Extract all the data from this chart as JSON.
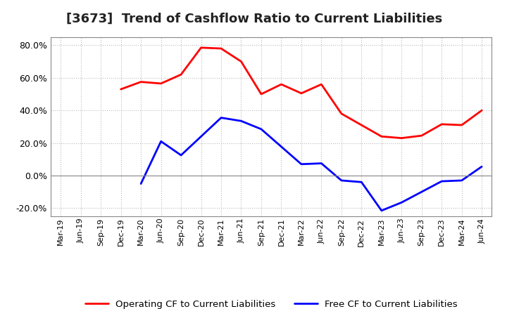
{
  "title": "[3673]  Trend of Cashflow Ratio to Current Liabilities",
  "x_labels": [
    "Mar-19",
    "Jun-19",
    "Sep-19",
    "Dec-19",
    "Mar-20",
    "Jun-20",
    "Sep-20",
    "Dec-20",
    "Mar-21",
    "Jun-21",
    "Sep-21",
    "Dec-21",
    "Mar-22",
    "Jun-22",
    "Sep-22",
    "Dec-22",
    "Mar-23",
    "Jun-23",
    "Sep-23",
    "Dec-23",
    "Mar-24",
    "Jun-24"
  ],
  "operating_cf": [
    null,
    null,
    null,
    53.0,
    57.5,
    56.5,
    62.0,
    78.5,
    78.0,
    70.0,
    50.0,
    56.0,
    50.5,
    56.0,
    38.0,
    null,
    24.0,
    23.0,
    24.5,
    31.5,
    31.0,
    40.0
  ],
  "free_cf": [
    null,
    null,
    null,
    null,
    -5.0,
    21.0,
    12.5,
    null,
    35.5,
    33.5,
    28.5,
    null,
    7.0,
    7.5,
    -3.0,
    -4.0,
    -21.5,
    -16.5,
    null,
    -3.5,
    -3.0,
    5.5
  ],
  "operating_cf_color": "#ff0000",
  "free_cf_color": "#0000ff",
  "ylim": [
    -25.0,
    85.0
  ],
  "yticks": [
    -20.0,
    0.0,
    20.0,
    40.0,
    60.0,
    80.0
  ],
  "background_color": "#ffffff",
  "plot_bg_color": "#ffffff",
  "grid_color": "#bbbbbb",
  "legend_op": "Operating CF to Current Liabilities",
  "legend_free": "Free CF to Current Liabilities",
  "title_fontsize": 13,
  "linewidth": 2.0
}
